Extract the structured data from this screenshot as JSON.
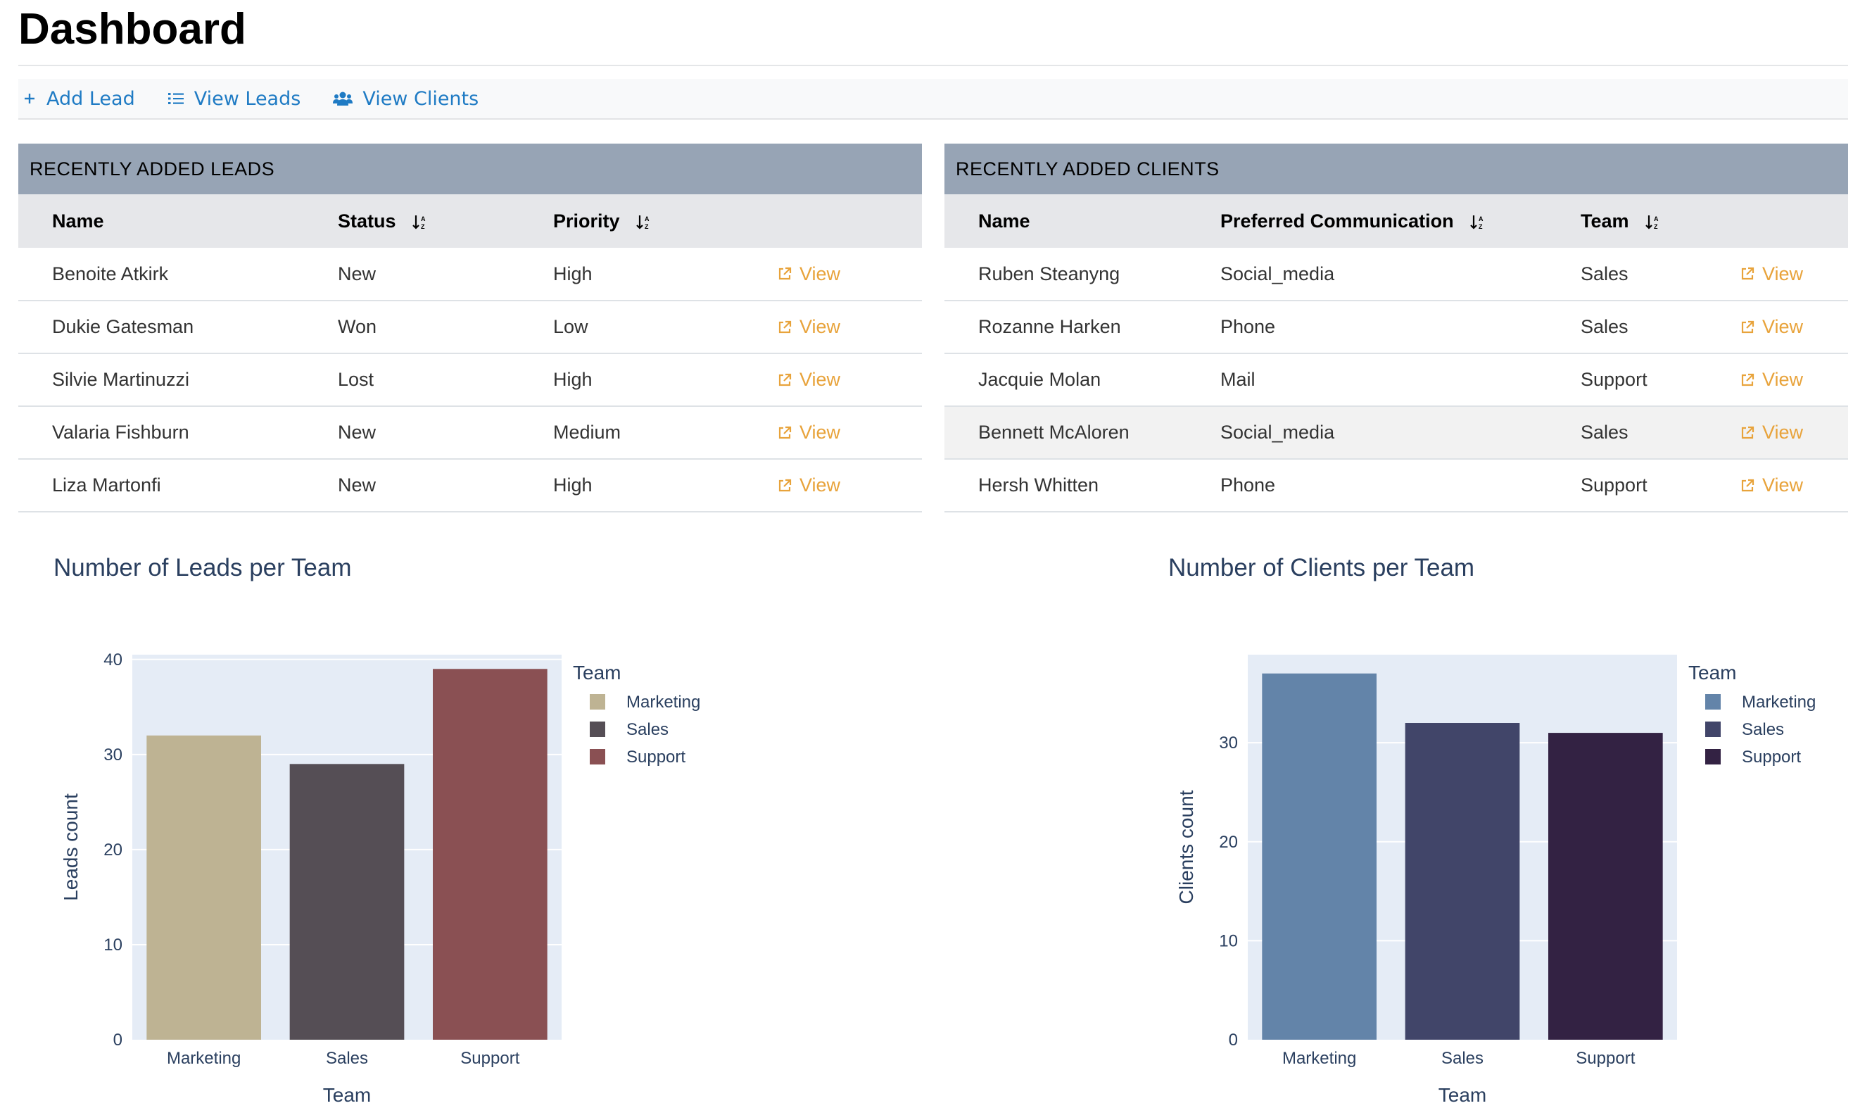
{
  "page": {
    "title": "Dashboard"
  },
  "nav": [
    {
      "label": "Add Lead",
      "icon": "plus-icon"
    },
    {
      "label": "View Leads",
      "icon": "list-icon"
    },
    {
      "label": "View Clients",
      "icon": "users-icon"
    }
  ],
  "leads_panel": {
    "heading": "RECENTLY ADDED LEADS",
    "columns": [
      "Name",
      "Status",
      "Priority"
    ],
    "view_label": "View",
    "rows": [
      {
        "name": "Benoite Atkirk",
        "status": "New",
        "priority": "High"
      },
      {
        "name": "Dukie Gatesman",
        "status": "Won",
        "priority": "Low"
      },
      {
        "name": "Silvie Martinuzzi",
        "status": "Lost",
        "priority": "High"
      },
      {
        "name": "Valaria Fishburn",
        "status": "New",
        "priority": "Medium"
      },
      {
        "name": "Liza Martonfi",
        "status": "New",
        "priority": "High"
      }
    ]
  },
  "clients_panel": {
    "heading": "RECENTLY ADDED CLIENTS",
    "columns": [
      "Name",
      "Preferred Communication",
      "Team"
    ],
    "view_label": "View",
    "rows": [
      {
        "name": "Ruben Steanyng",
        "communication": "Social_media",
        "team": "Sales"
      },
      {
        "name": "Rozanne Harken",
        "communication": "Phone",
        "team": "Sales"
      },
      {
        "name": "Jacquie Molan",
        "communication": "Mail",
        "team": "Support"
      },
      {
        "name": "Bennett McAloren",
        "communication": "Social_media",
        "team": "Sales"
      },
      {
        "name": "Hersh Whitten",
        "communication": "Phone",
        "team": "Support"
      }
    ]
  },
  "colors": {
    "link": "#1f7bc4",
    "view_link": "#e8a33b",
    "panel_header": "#97a4b5",
    "plot_bg": "#e5ecf6"
  },
  "chart_data": [
    {
      "type": "bar",
      "title": "Number of Leads per Team",
      "xlabel": "Team",
      "ylabel": "Leads count",
      "categories": [
        "Marketing",
        "Sales",
        "Support"
      ],
      "values": [
        32,
        29,
        39
      ],
      "colors": [
        "#beb393",
        "#554e55",
        "#8a5053"
      ],
      "ylim": [
        0,
        40.5
      ],
      "yticks": [
        0,
        10,
        20,
        30,
        40
      ],
      "legend_title": "Team",
      "legend_position": "top-right",
      "grid": true
    },
    {
      "type": "bar",
      "title": "Number of Clients per Team",
      "xlabel": "Team",
      "ylabel": "Clients count",
      "categories": [
        "Marketing",
        "Sales",
        "Support"
      ],
      "values": [
        37,
        32,
        31
      ],
      "colors": [
        "#6384a9",
        "#414569",
        "#332243"
      ],
      "ylim": [
        0,
        38.9
      ],
      "yticks": [
        0,
        10,
        20,
        30
      ],
      "legend_title": "Team",
      "legend_position": "top-right",
      "grid": true
    }
  ]
}
